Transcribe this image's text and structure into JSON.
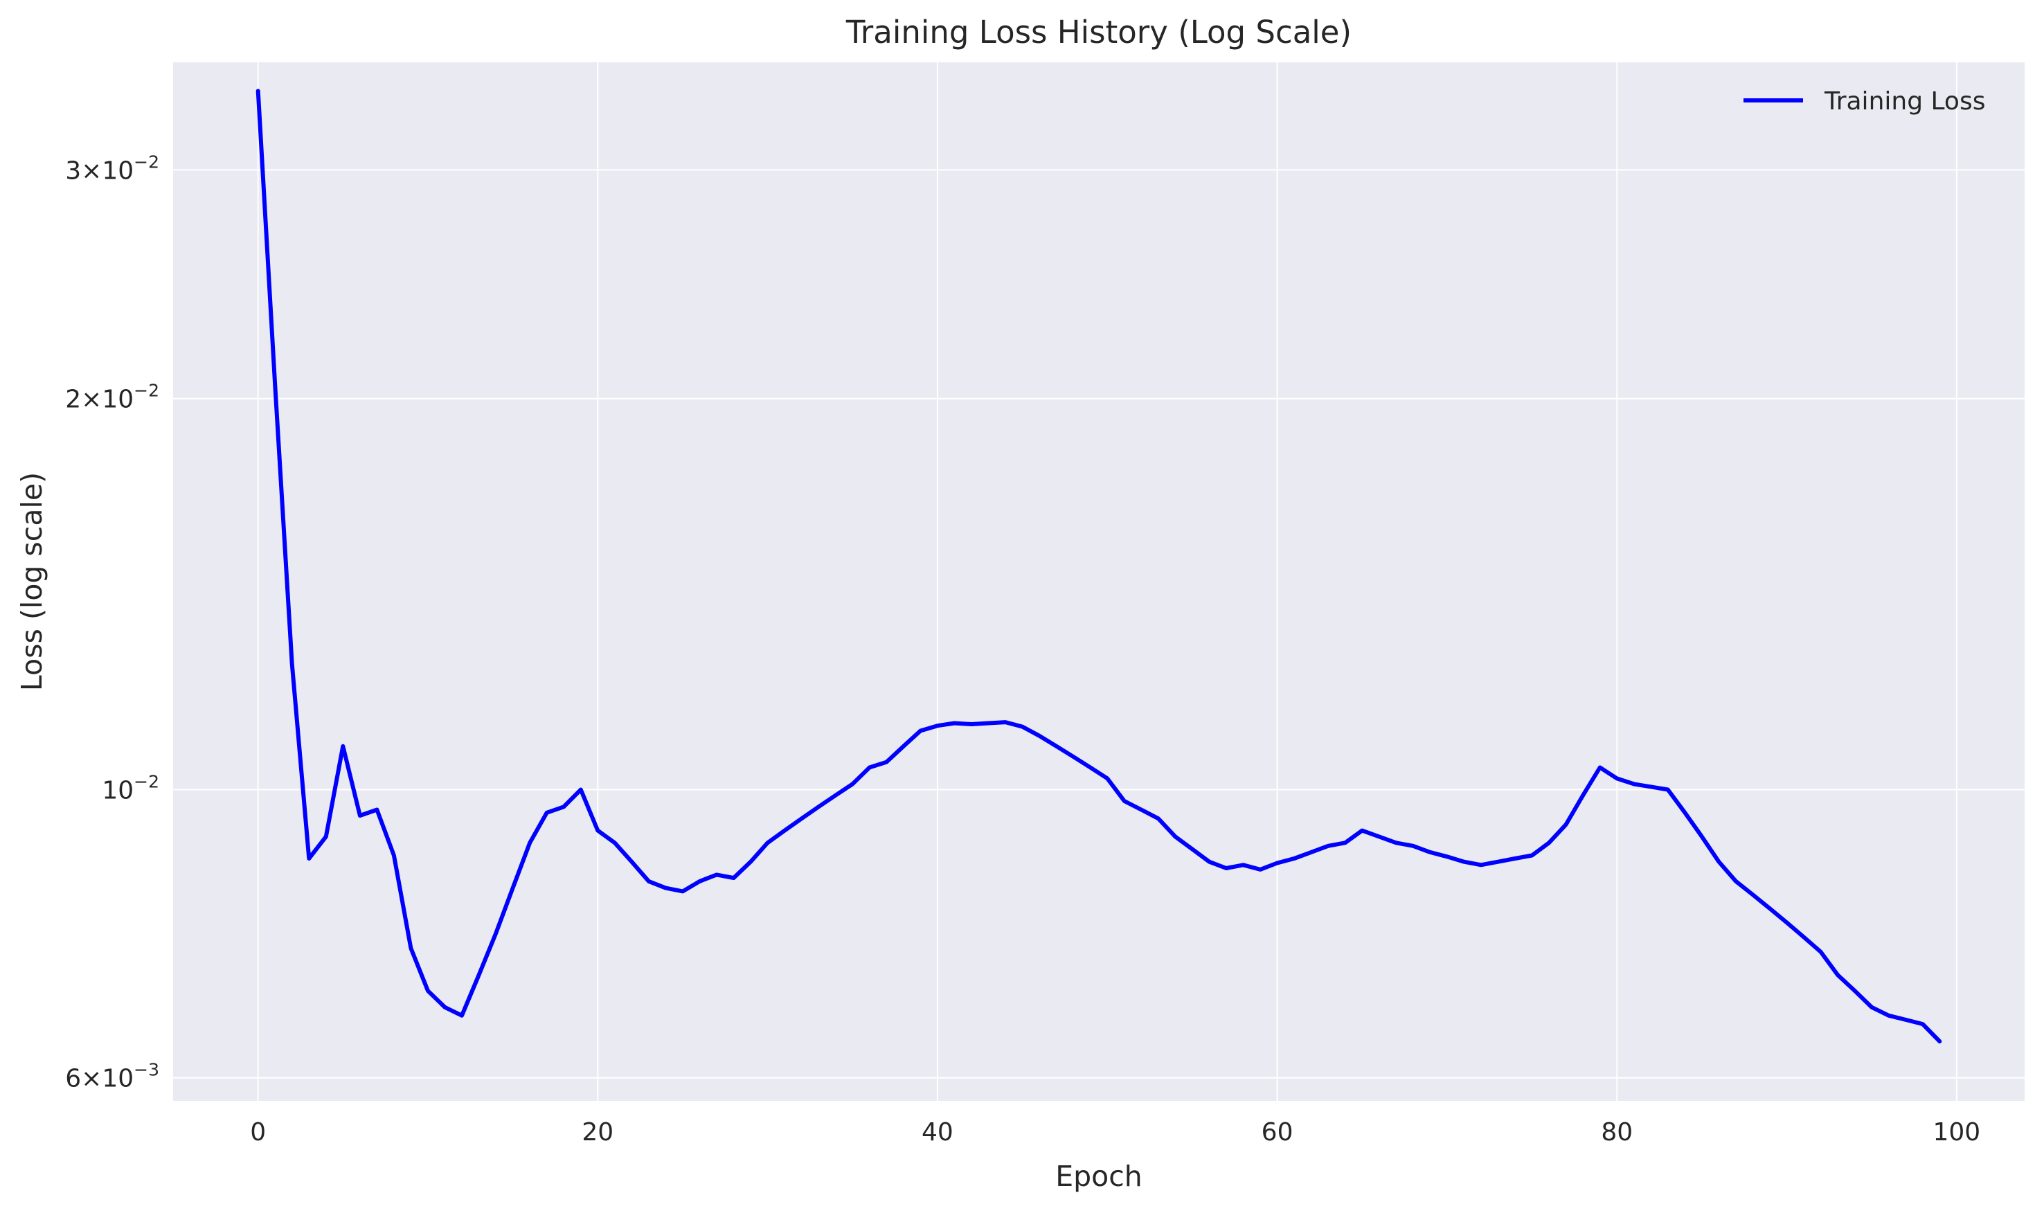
{
  "chart_data": {
    "type": "line",
    "title": "Training Loss History (Log Scale)",
    "xlabel": "Epoch",
    "ylabel": "Loss (log scale)",
    "xlim": [
      -5,
      104
    ],
    "ylim": [
      0.00576,
      0.0363
    ],
    "yscale": "log",
    "grid": true,
    "legend_position": "top-right",
    "plot_background": "#eaeaf2",
    "x_ticks": [
      {
        "value": 0,
        "label": "0"
      },
      {
        "value": 20,
        "label": "20"
      },
      {
        "value": 40,
        "label": "40"
      },
      {
        "value": 60,
        "label": "60"
      },
      {
        "value": 80,
        "label": "80"
      },
      {
        "value": 100,
        "label": "100"
      }
    ],
    "y_ticks": [
      {
        "value": 0.006,
        "mantissa": "6×10",
        "exponent": "−3"
      },
      {
        "value": 0.01,
        "mantissa": "10",
        "exponent": "−2"
      },
      {
        "value": 0.02,
        "mantissa": "2×10",
        "exponent": "−2"
      },
      {
        "value": 0.03,
        "mantissa": "3×10",
        "exponent": "−2"
      }
    ],
    "series": [
      {
        "name": "Training Loss",
        "color": "#0000ff",
        "x": [
          0,
          1,
          2,
          3,
          4,
          5,
          6,
          7,
          8,
          9,
          10,
          11,
          12,
          13,
          14,
          15,
          16,
          17,
          18,
          19,
          20,
          21,
          22,
          23,
          24,
          25,
          26,
          27,
          28,
          29,
          30,
          31,
          32,
          33,
          34,
          35,
          36,
          37,
          38,
          39,
          40,
          41,
          42,
          43,
          44,
          45,
          46,
          47,
          48,
          49,
          50,
          51,
          52,
          53,
          54,
          55,
          56,
          57,
          58,
          59,
          60,
          61,
          62,
          63,
          64,
          65,
          66,
          67,
          68,
          69,
          70,
          71,
          72,
          73,
          74,
          75,
          76,
          77,
          78,
          79,
          80,
          81,
          82,
          83,
          84,
          85,
          86,
          87,
          88,
          89,
          90,
          91,
          92,
          93,
          94,
          95,
          96,
          97,
          98,
          99
        ],
        "values": [
          0.0345,
          0.0205,
          0.0125,
          0.00885,
          0.0092,
          0.0108,
          0.00955,
          0.00965,
          0.0089,
          0.00755,
          0.007,
          0.0068,
          0.0067,
          0.0072,
          0.00775,
          0.0084,
          0.0091,
          0.0096,
          0.0097,
          0.01,
          0.0093,
          0.0091,
          0.0088,
          0.0085,
          0.0084,
          0.00835,
          0.0085,
          0.0086,
          0.00855,
          0.0088,
          0.0091,
          0.0093,
          0.0095,
          0.0097,
          0.0099,
          0.0101,
          0.0104,
          0.0105,
          0.0108,
          0.0111,
          0.0112,
          0.01125,
          0.01123,
          0.01125,
          0.01127,
          0.01118,
          0.011,
          0.0108,
          0.0106,
          0.0104,
          0.0102,
          0.0098,
          0.00965,
          0.0095,
          0.0092,
          0.009,
          0.0088,
          0.0087,
          0.00875,
          0.00868,
          0.00878,
          0.00885,
          0.00895,
          0.00905,
          0.0091,
          0.0093,
          0.0092,
          0.0091,
          0.00905,
          0.00895,
          0.00888,
          0.0088,
          0.00875,
          0.0088,
          0.00885,
          0.0089,
          0.0091,
          0.0094,
          0.0099,
          0.0104,
          0.0102,
          0.0101,
          0.01005,
          0.01,
          0.0096,
          0.0092,
          0.0088,
          0.0085,
          0.0083,
          0.0081,
          0.0079,
          0.0077,
          0.0075,
          0.0072,
          0.007,
          0.0068,
          0.0067,
          0.00665,
          0.0066,
          0.0064
        ]
      }
    ]
  }
}
